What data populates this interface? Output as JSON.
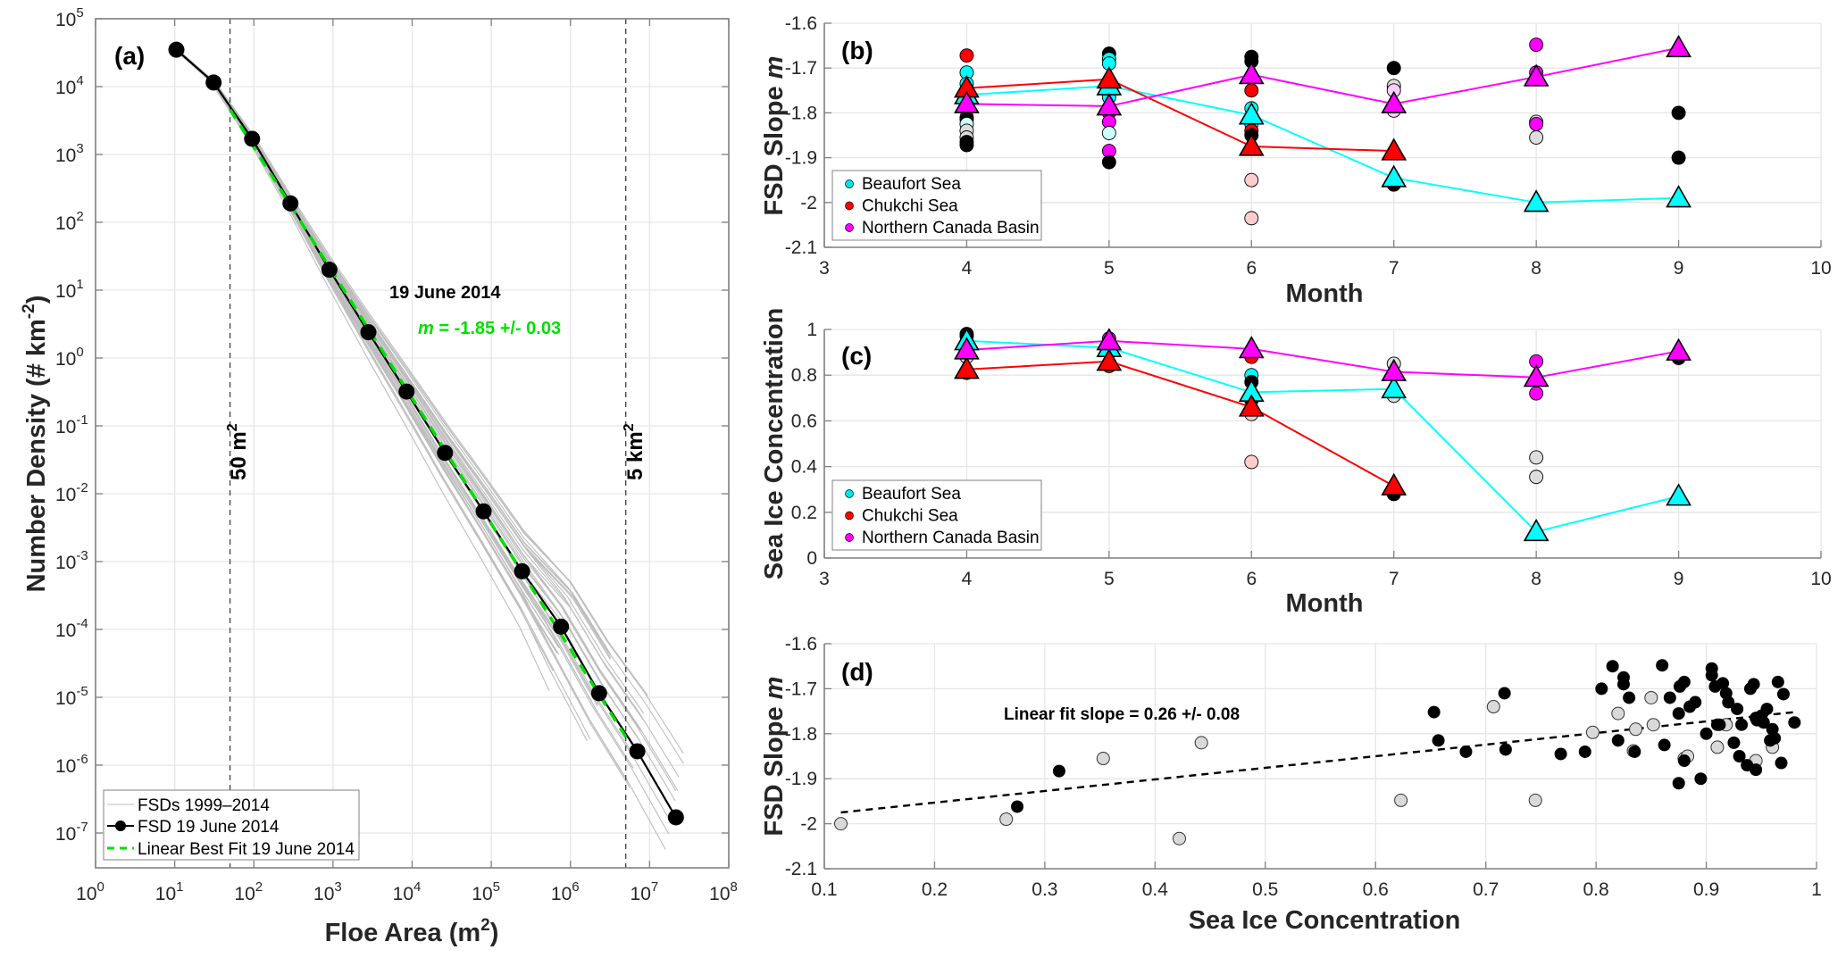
{
  "chart_data": [
    {
      "id": "a",
      "type": "line",
      "panel_label": "(a)",
      "xlabel": "Floe Area (m",
      "xlabel_sup": "2",
      "xlabel_end": ")",
      "ylabel": "Number Density (# km",
      "ylabel_sup": "-2",
      "ylabel_end": ")",
      "xscale": "log",
      "yscale": "log",
      "xlim_exp": [
        0,
        8
      ],
      "ylim_exp": [
        -7.5,
        5
      ],
      "x_ticks_exp": [
        0,
        1,
        2,
        3,
        4,
        5,
        6,
        7,
        8
      ],
      "y_ticks_exp": [
        -7,
        -6,
        -5,
        -4,
        -3,
        -2,
        -1,
        0,
        1,
        2,
        3,
        4,
        5
      ],
      "tick_base": "10",
      "grid": true,
      "legend_position": "bottom-left",
      "legend": [
        {
          "label": "FSDs 1999–2014",
          "style": "thin-gray-line"
        },
        {
          "label": "FSD 19 June 2014",
          "style": "black-line-circle"
        },
        {
          "label": "Linear Best Fit 19 June 2014",
          "style": "green-dashed"
        }
      ],
      "annotations": {
        "date": "19 June 2014",
        "slope_symbol": "m",
        "slope_text": " = -1.85 +/- 0.03",
        "lower_cut_label": "50 m",
        "lower_cut_sup": "2",
        "upper_cut_label": "5 km",
        "upper_cut_sup": "2"
      },
      "vlines": [
        {
          "x": 50,
          "label": "50 m2"
        },
        {
          "x": 5000000,
          "label": "5 km2"
        }
      ],
      "series": [
        {
          "name": "FSD 19 June 2014",
          "color": "#000000",
          "x": [
            10.5,
            31,
            95,
            290,
            900,
            2800,
            8500,
            26000,
            80000,
            245000,
            760000,
            2300000,
            7000000,
            21500000
          ],
          "y": [
            35000,
            11500,
            1700,
            190,
            20,
            2.4,
            0.32,
            0.04,
            0.0055,
            0.00072,
            0.00011,
            1.15e-05,
            1.6e-06,
            1.7e-07
          ]
        },
        {
          "name": "Linear Best Fit 19 June 2014",
          "color": "#00e000",
          "x": [
            50,
            5000000
          ],
          "y": [
            4600,
            2.6e-06
          ]
        }
      ],
      "background_fsd_count": 40,
      "background_fsd_color": "#bdbdbd"
    },
    {
      "id": "b",
      "type": "scatter",
      "panel_label": "(b)",
      "xlabel": "Month",
      "ylabel": "FSD Slope ",
      "ylabel_italic": "m",
      "xlim": [
        3,
        10
      ],
      "ylim": [
        -2.1,
        -1.6
      ],
      "x_ticks": [
        3,
        4,
        5,
        6,
        7,
        8,
        9,
        10
      ],
      "y_ticks": [
        -1.6,
        -1.7,
        -1.8,
        -1.9,
        -2,
        -2.1
      ],
      "grid": true,
      "legend_position": "bottom-left",
      "legend": [
        {
          "label": "Beaufort Sea",
          "color": "#00e5e5"
        },
        {
          "label": "Chukchi Sea",
          "color": "#ff0000"
        },
        {
          "label": "Northern Canada Basin",
          "color": "#ff00ff"
        }
      ],
      "series": [
        {
          "name": "Beaufort Sea",
          "color": "#00ffff",
          "x": [
            4,
            5,
            6,
            7,
            8,
            9
          ],
          "y": [
            -1.76,
            -1.74,
            -1.805,
            -1.945,
            -2.0,
            -1.99
          ]
        },
        {
          "name": "Chukchi Sea",
          "color": "#ff0000",
          "x": [
            4,
            5,
            6,
            7
          ],
          "y": [
            -1.745,
            -1.725,
            -1.875,
            -1.885
          ]
        },
        {
          "name": "Northern Canada Basin",
          "color": "#ff00ff",
          "x": [
            4,
            5,
            6,
            7,
            8,
            9
          ],
          "y": [
            -1.78,
            -1.785,
            -1.715,
            -1.78,
            -1.72,
            -1.655
          ]
        }
      ],
      "points": [
        {
          "x": 4,
          "y": -1.672,
          "c": "#ff0000"
        },
        {
          "x": 4,
          "y": -1.71,
          "c": "#00ffff"
        },
        {
          "x": 4,
          "y": -1.735,
          "c": "#00ffff"
        },
        {
          "x": 4,
          "y": -1.81,
          "c": "#ff0000"
        },
        {
          "x": 4,
          "y": -1.815,
          "c": "#000000"
        },
        {
          "x": 4,
          "y": -1.825,
          "c": "#ccffff"
        },
        {
          "x": 4,
          "y": -1.84,
          "c": "#dddddd"
        },
        {
          "x": 4,
          "y": -1.855,
          "c": "#dddddd"
        },
        {
          "x": 4,
          "y": -1.865,
          "c": "#000000"
        },
        {
          "x": 4,
          "y": -1.872,
          "c": "#000000"
        },
        {
          "x": 5,
          "y": -1.668,
          "c": "#000000"
        },
        {
          "x": 5,
          "y": -1.68,
          "c": "#00ffff"
        },
        {
          "x": 5,
          "y": -1.69,
          "c": "#00ffff"
        },
        {
          "x": 5,
          "y": -1.765,
          "c": "#00ffff"
        },
        {
          "x": 5,
          "y": -1.8,
          "c": "#ff00ff"
        },
        {
          "x": 5,
          "y": -1.82,
          "c": "#ff00ff"
        },
        {
          "x": 5,
          "y": -1.845,
          "c": "#ccffff"
        },
        {
          "x": 5,
          "y": -1.885,
          "c": "#ff00ff"
        },
        {
          "x": 5,
          "y": -1.91,
          "c": "#000000"
        },
        {
          "x": 6,
          "y": -1.675,
          "c": "#000000"
        },
        {
          "x": 6,
          "y": -1.685,
          "c": "#000000"
        },
        {
          "x": 6,
          "y": -1.72,
          "c": "#ff0000"
        },
        {
          "x": 6,
          "y": -1.75,
          "c": "#ff0000"
        },
        {
          "x": 6,
          "y": -1.79,
          "c": "#00ffff"
        },
        {
          "x": 6,
          "y": -1.825,
          "c": "#00ffff"
        },
        {
          "x": 6,
          "y": -1.84,
          "c": "#ff0000"
        },
        {
          "x": 6,
          "y": -1.85,
          "c": "#000000"
        },
        {
          "x": 6,
          "y": -1.95,
          "c": "#ffcccc"
        },
        {
          "x": 6,
          "y": -2.035,
          "c": "#ffcccc"
        },
        {
          "x": 7,
          "y": -1.7,
          "c": "#000000"
        },
        {
          "x": 7,
          "y": -1.74,
          "c": "#dddddd"
        },
        {
          "x": 7,
          "y": -1.75,
          "c": "#ffccff"
        },
        {
          "x": 7,
          "y": -1.795,
          "c": "#ffccff"
        },
        {
          "x": 7,
          "y": -1.96,
          "c": "#000000"
        },
        {
          "x": 8,
          "y": -1.648,
          "c": "#ff00ff"
        },
        {
          "x": 8,
          "y": -1.71,
          "c": "#ff00ff"
        },
        {
          "x": 8,
          "y": -1.82,
          "c": "#dddddd"
        },
        {
          "x": 8,
          "y": -1.825,
          "c": "#ff00ff"
        },
        {
          "x": 8,
          "y": -1.855,
          "c": "#dddddd"
        },
        {
          "x": 9,
          "y": -1.8,
          "c": "#000000"
        },
        {
          "x": 9,
          "y": -1.9,
          "c": "#000000"
        }
      ]
    },
    {
      "id": "c",
      "type": "scatter",
      "panel_label": "(c)",
      "xlabel": "Month",
      "ylabel": "Sea Ice Concentration",
      "xlim": [
        3,
        10
      ],
      "ylim": [
        0,
        1
      ],
      "x_ticks": [
        3,
        4,
        5,
        6,
        7,
        8,
        9,
        10
      ],
      "y_ticks": [
        0,
        0.2,
        0.4,
        0.6,
        0.8,
        1
      ],
      "grid": true,
      "legend_position": "bottom-left",
      "legend": [
        {
          "label": "Beaufort Sea",
          "color": "#00e5e5"
        },
        {
          "label": "Chukchi Sea",
          "color": "#ff0000"
        },
        {
          "label": "Northern Canada Basin",
          "color": "#ff00ff"
        }
      ],
      "series": [
        {
          "name": "Beaufort Sea",
          "color": "#00ffff",
          "x": [
            4,
            5,
            6,
            7,
            8,
            9
          ],
          "y": [
            0.95,
            0.92,
            0.725,
            0.74,
            0.115,
            0.27
          ]
        },
        {
          "name": "Chukchi Sea",
          "color": "#ff0000",
          "x": [
            4,
            5,
            6,
            7
          ],
          "y": [
            0.825,
            0.86,
            0.66,
            0.315
          ]
        },
        {
          "name": "Northern Canada Basin",
          "color": "#ff00ff",
          "x": [
            4,
            5,
            6,
            7,
            8,
            9
          ],
          "y": [
            0.91,
            0.95,
            0.915,
            0.815,
            0.79,
            0.905
          ]
        }
      ],
      "points": [
        {
          "x": 4,
          "y": 0.98,
          "c": "#000000"
        },
        {
          "x": 4,
          "y": 0.97,
          "c": "#000000"
        },
        {
          "x": 4,
          "y": 0.88,
          "c": "#dddddd"
        },
        {
          "x": 4,
          "y": 0.81,
          "c": "#ff0000"
        },
        {
          "x": 5,
          "y": 0.96,
          "c": "#ff00ff"
        },
        {
          "x": 5,
          "y": 0.9,
          "c": "#00ffff"
        },
        {
          "x": 5,
          "y": 0.84,
          "c": "#ff0000"
        },
        {
          "x": 6,
          "y": 0.88,
          "c": "#ff0000"
        },
        {
          "x": 6,
          "y": 0.8,
          "c": "#00ffff"
        },
        {
          "x": 6,
          "y": 0.77,
          "c": "#000000"
        },
        {
          "x": 6,
          "y": 0.69,
          "c": "#000000"
        },
        {
          "x": 6,
          "y": 0.63,
          "c": "#ffcccc"
        },
        {
          "x": 6,
          "y": 0.42,
          "c": "#ffcccc"
        },
        {
          "x": 7,
          "y": 0.85,
          "c": "#dddddd"
        },
        {
          "x": 7,
          "y": 0.71,
          "c": "#dddddd"
        },
        {
          "x": 7,
          "y": 0.28,
          "c": "#000000"
        },
        {
          "x": 8,
          "y": 0.86,
          "c": "#ff00ff"
        },
        {
          "x": 8,
          "y": 0.72,
          "c": "#ff00ff"
        },
        {
          "x": 8,
          "y": 0.44,
          "c": "#dddddd"
        },
        {
          "x": 8,
          "y": 0.355,
          "c": "#dddddd"
        },
        {
          "x": 9,
          "y": 0.875,
          "c": "#000000"
        }
      ]
    },
    {
      "id": "d",
      "type": "scatter",
      "panel_label": "(d)",
      "xlabel": "Sea Ice Concentration",
      "ylabel": "FSD Slope ",
      "ylabel_italic": "m",
      "xlim": [
        0.1,
        1
      ],
      "ylim": [
        -2.1,
        -1.6
      ],
      "x_ticks": [
        0.1,
        0.2,
        0.3,
        0.4,
        0.5,
        0.6,
        0.7,
        0.8,
        0.9,
        1
      ],
      "y_ticks": [
        -1.6,
        -1.7,
        -1.8,
        -1.9,
        -2,
        -2.1
      ],
      "grid": true,
      "annotation": "Linear fit slope = 0.26 +/- 0.08",
      "fit_line": {
        "x": [
          0.115,
          0.98
        ],
        "y": [
          -1.975,
          -1.752
        ]
      },
      "points_black": {
        "x": [
          0.275,
          0.313,
          0.653,
          0.657,
          0.682,
          0.717,
          0.718,
          0.768,
          0.805,
          0.82,
          0.825,
          0.83,
          0.835,
          0.86,
          0.862,
          0.867,
          0.875,
          0.876,
          0.88,
          0.88,
          0.885,
          0.89,
          0.9,
          0.905,
          0.905,
          0.908,
          0.91,
          0.912,
          0.915,
          0.918,
          0.92,
          0.925,
          0.928,
          0.93,
          0.932,
          0.94,
          0.943,
          0.945,
          0.946,
          0.95,
          0.952,
          0.955,
          0.958,
          0.96,
          0.962,
          0.965,
          0.968,
          0.97,
          0.98,
          0.815,
          0.825,
          0.79,
          0.875,
          0.895,
          0.937,
          0.945
        ],
        "y": [
          -1.962,
          -1.883,
          -1.752,
          -1.815,
          -1.84,
          -1.71,
          -1.835,
          -1.845,
          -1.7,
          -1.815,
          -1.675,
          -1.72,
          -1.84,
          -1.648,
          -1.825,
          -1.72,
          -1.91,
          -1.695,
          -1.685,
          -1.86,
          -1.74,
          -1.73,
          -1.8,
          -1.655,
          -1.67,
          -1.695,
          -1.78,
          -1.78,
          -1.688,
          -1.71,
          -1.73,
          -1.82,
          -1.745,
          -1.85,
          -1.78,
          -1.7,
          -1.69,
          -1.765,
          -1.77,
          -1.76,
          -1.775,
          -1.745,
          -1.815,
          -1.79,
          -1.81,
          -1.685,
          -1.865,
          -1.712,
          -1.775,
          -1.65,
          -1.69,
          -1.84,
          -1.755,
          -1.9,
          -1.87,
          -1.88
        ]
      },
      "points_gray": {
        "x": [
          0.115,
          0.265,
          0.353,
          0.422,
          0.442,
          0.623,
          0.707,
          0.745,
          0.797,
          0.82,
          0.834,
          0.85,
          0.852,
          0.88,
          0.883,
          0.91,
          0.918,
          0.945,
          0.96,
          0.836
        ],
        "y": [
          -2.0,
          -1.99,
          -1.855,
          -2.033,
          -1.82,
          -1.948,
          -1.74,
          -1.948,
          -1.797,
          -1.755,
          -1.838,
          -1.72,
          -1.78,
          -1.855,
          -1.85,
          -1.83,
          -1.78,
          -1.86,
          -1.83,
          -1.79
        ]
      }
    }
  ]
}
